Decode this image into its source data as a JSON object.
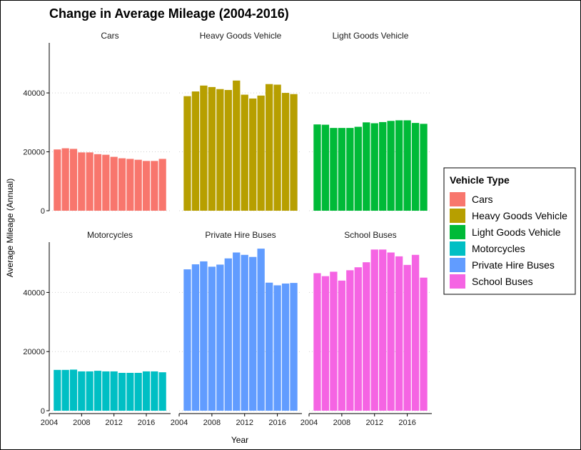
{
  "chart_data": {
    "type": "bar",
    "title": "Change in Average Mileage (2004-2016)",
    "xlabel": "Year",
    "ylabel": "Average Mileage (Annual)",
    "x_ticks": [
      2004,
      2008,
      2012,
      2016
    ],
    "y_ticks": [
      0,
      20000,
      40000
    ],
    "xlim": [
      2004,
      2019
    ],
    "ylim": [
      0,
      57000
    ],
    "grid": "horizontal dotted",
    "legend_position": "right",
    "legend_title": "Vehicle Type",
    "years": [
      2005,
      2006,
      2007,
      2008,
      2009,
      2010,
      2011,
      2012,
      2013,
      2014,
      2015,
      2016,
      2017,
      2018
    ],
    "series": [
      {
        "name": "Cars",
        "color": "#F8766D",
        "values": [
          20800,
          21200,
          21000,
          19800,
          19800,
          19200,
          19000,
          18300,
          17800,
          17600,
          17300,
          16900,
          16900,
          17600
        ]
      },
      {
        "name": "Heavy Goods Vehicle",
        "color": "#B79F00",
        "values": [
          38900,
          40500,
          42500,
          42000,
          41300,
          41000,
          44200,
          39400,
          38100,
          39100,
          43000,
          42800,
          40000,
          39600
        ]
      },
      {
        "name": "Light Goods Vehicle",
        "color": "#00BA38",
        "values": [
          29300,
          29200,
          28100,
          28100,
          28100,
          28500,
          30000,
          29700,
          30100,
          30500,
          30700,
          30700,
          29800,
          29500
        ]
      },
      {
        "name": "Motorcycles",
        "color": "#00BFC4",
        "values": [
          13800,
          13800,
          13900,
          13300,
          13300,
          13500,
          13300,
          13300,
          12800,
          12800,
          12800,
          13300,
          13300,
          13000
        ]
      },
      {
        "name": "Private Hire Buses",
        "color": "#619CFF",
        "values": [
          47800,
          49500,
          50500,
          48700,
          49400,
          51500,
          53500,
          52700,
          52000,
          54800,
          43300,
          42400,
          43000,
          43200
        ]
      },
      {
        "name": "School Buses",
        "color": "#F564E3",
        "values": [
          46500,
          45500,
          47000,
          44000,
          47500,
          48500,
          50200,
          54500,
          54500,
          53500,
          52200,
          49300,
          52700,
          45000
        ]
      }
    ]
  }
}
